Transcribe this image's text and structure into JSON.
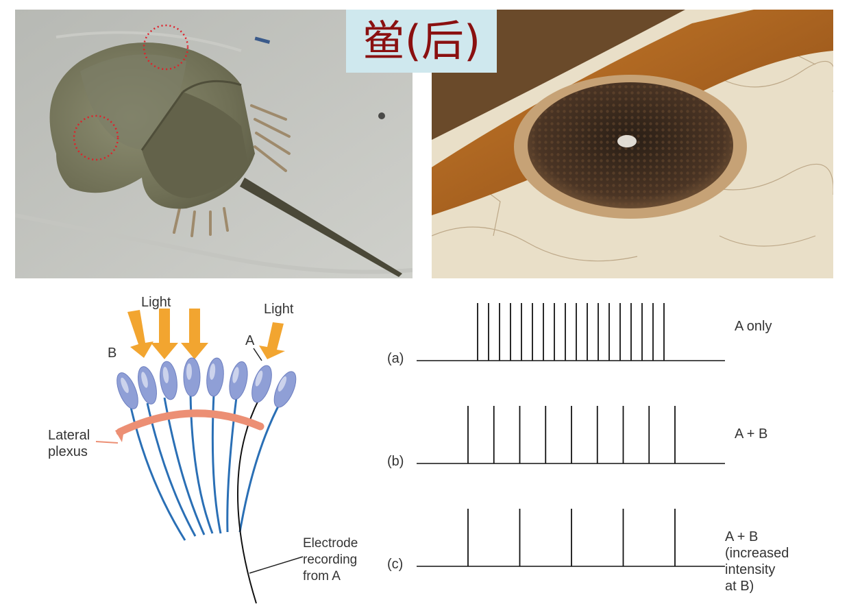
{
  "title": "鲎(后)",
  "photos": {
    "left": "horseshoe-crab-photo",
    "right": "compound-eye-closeup-photo"
  },
  "diagram": {
    "light_label_1": "Light",
    "light_label_2": "Light",
    "cell_b_label": "B",
    "cell_a_label": "A",
    "plexus_label_line1": "Lateral",
    "plexus_label_line2": "plexus",
    "electrode_line1": "Electrode",
    "electrode_line2": "recording",
    "electrode_line3": "from A"
  },
  "recordings": [
    {
      "label": "(a)",
      "condition_lines": [
        "A only"
      ],
      "spike_count": 18
    },
    {
      "label": "(b)",
      "condition_lines": [
        "A + B"
      ],
      "spike_count": 9
    },
    {
      "label": "(c)",
      "condition_lines": [
        "A + B",
        "(increased",
        "intensity",
        "at B)"
      ],
      "spike_count": 5
    }
  ],
  "colors": {
    "title_text": "#8a1010",
    "title_bg": "#cfe8ee",
    "arrow": "#f2a530",
    "nerve": "#2a6fb5",
    "plexus": "#ec8f74",
    "cell": "#8f9fd6",
    "dashed_circle": "#e0202a"
  }
}
